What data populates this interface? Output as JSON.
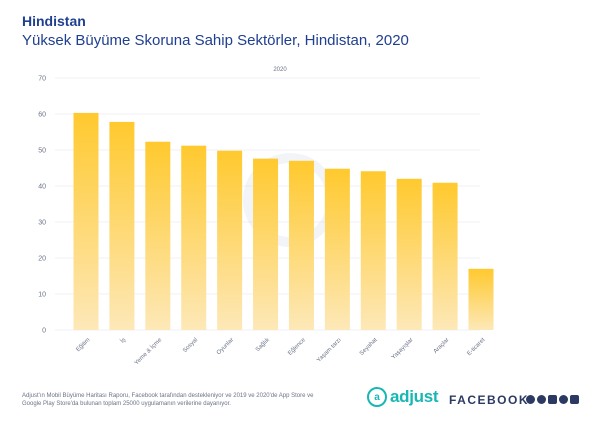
{
  "header": {
    "title": "Hindistan",
    "subtitle": "Yüksek Büyüme Skoruna Sahip Sektörler, Hindistan, 2020"
  },
  "chart_data": {
    "type": "bar",
    "legend_label": "2020",
    "categories": [
      "Eğitim",
      "İş",
      "Yeme & İçme",
      "Sosyal",
      "Oyunlar",
      "Sağlık",
      "Eğlence",
      "Yaşam tarzı",
      "Seyahat",
      "Yaşayışlar",
      "Araçlar",
      "E-ticaret"
    ],
    "values": [
      60.3,
      57.8,
      52.3,
      51.2,
      49.8,
      47.6,
      47.0,
      44.8,
      44.1,
      42.0,
      40.9,
      17.0
    ],
    "yticks": [
      0,
      10,
      20,
      30,
      40,
      50,
      60,
      70
    ],
    "ylim": [
      0,
      70
    ],
    "grid": true,
    "colors": {
      "bar_top": "#ffc92e",
      "bar_bottom": "#fde8b8"
    }
  },
  "footer": {
    "note": "Adjust'ın Mobil Büyüme Haritası Raporu, Facebook tarafından destekleniyor ve 2019 ve 2020'de App Store ve Google Play Store'da bulunan toplam 25000 uygulamanın verilerine dayanıyor.",
    "adjust_logo": "adjust",
    "facebook_logo": "FACEBOOK"
  },
  "brand_colors": {
    "title": "#1f3f8f",
    "adjust": "#17b7b4",
    "facebook": "#2c3a63"
  }
}
